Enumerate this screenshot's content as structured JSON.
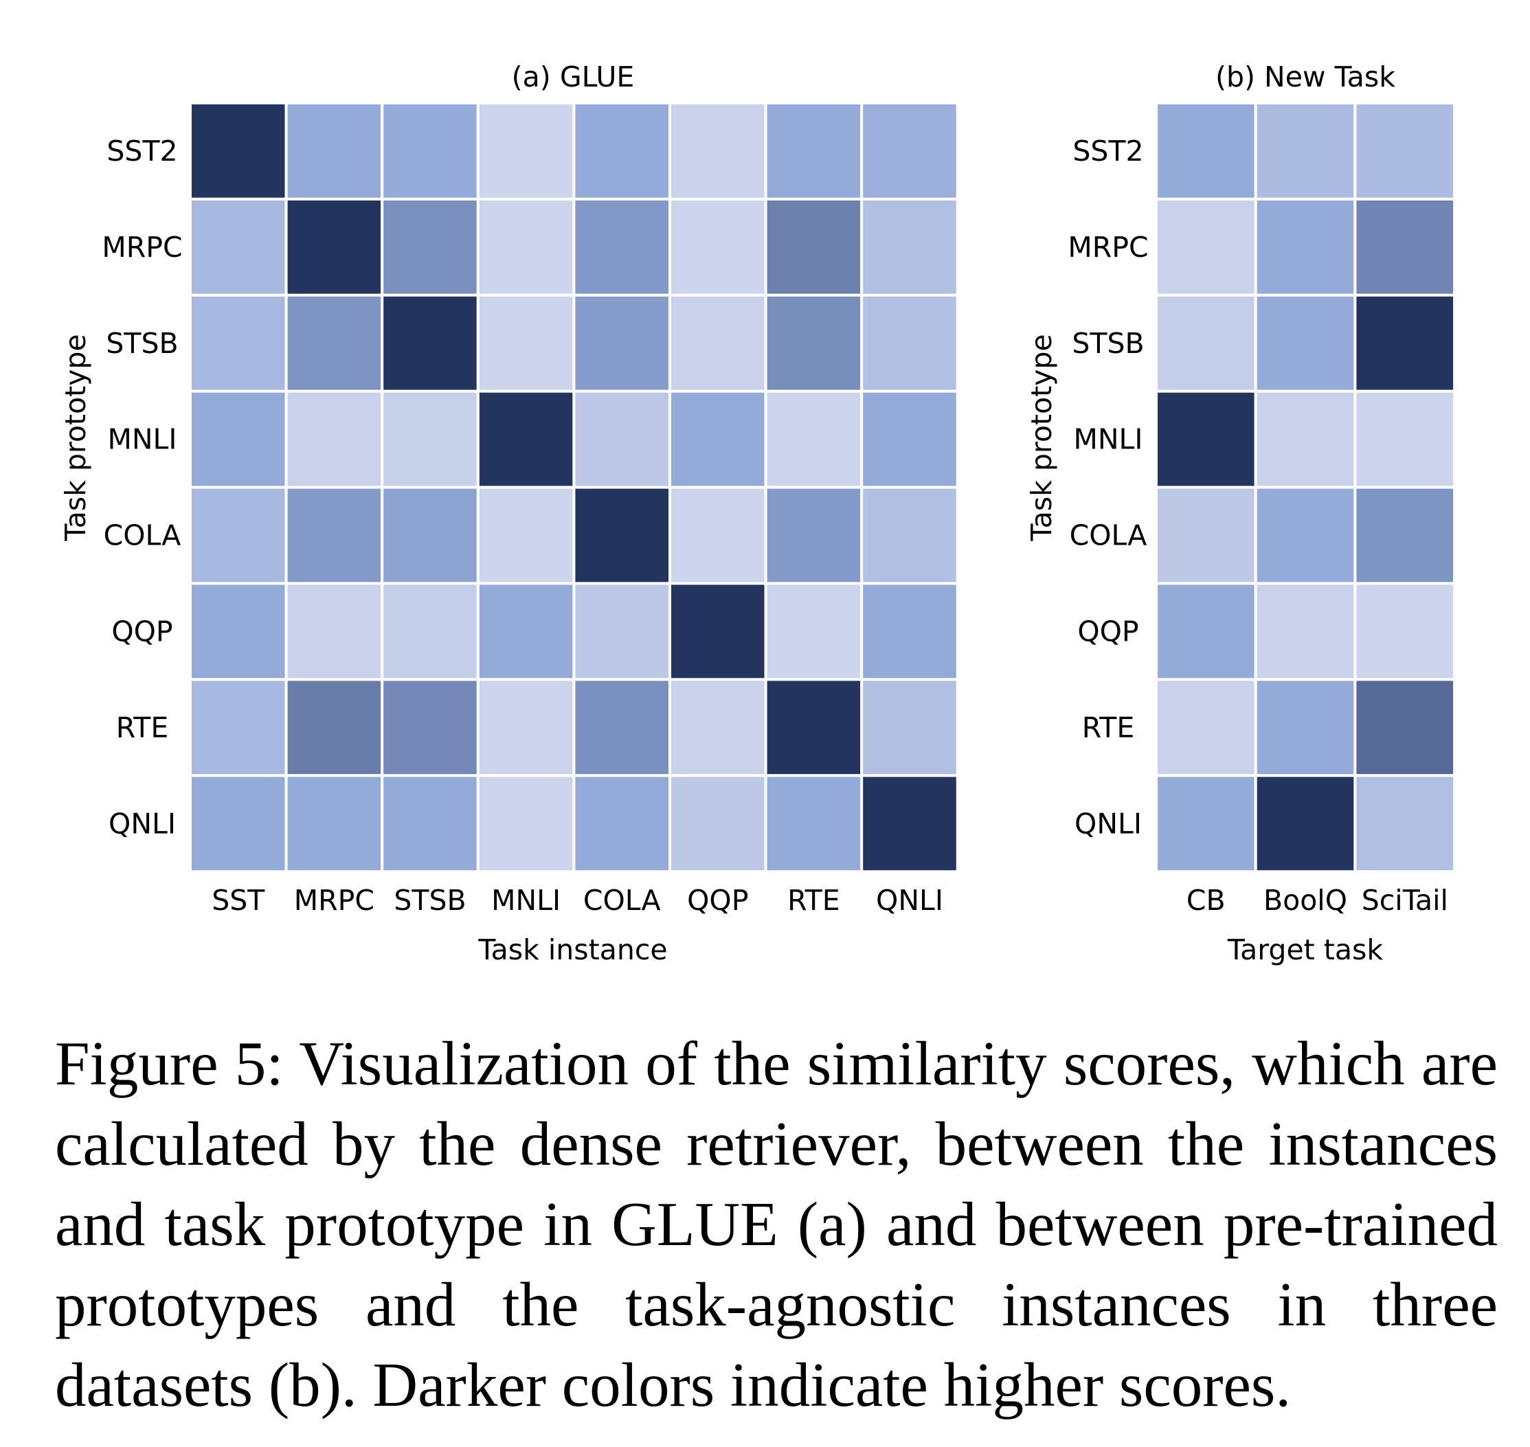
{
  "chart_data": [
    {
      "type": "heatmap",
      "title": "(a) GLUE",
      "xlabel": "Task instance",
      "ylabel": "Task prototype",
      "x_categories": [
        "SST",
        "MRPC",
        "STSB",
        "MNLI",
        "COLA",
        "QQP",
        "RTE",
        "QNLI"
      ],
      "y_categories": [
        "SST2",
        "MRPC",
        "STSB",
        "MNLI",
        "COLA",
        "QQP",
        "RTE",
        "QNLI"
      ],
      "value_range": [
        0,
        1
      ],
      "values": [
        [
          1.0,
          0.44,
          0.43,
          0.1,
          0.44,
          0.12,
          0.44,
          0.4
        ],
        [
          0.32,
          1.0,
          0.57,
          0.1,
          0.53,
          0.1,
          0.64,
          0.27
        ],
        [
          0.32,
          0.55,
          1.0,
          0.1,
          0.51,
          0.12,
          0.58,
          0.27
        ],
        [
          0.44,
          0.12,
          0.14,
          1.0,
          0.2,
          0.44,
          0.1,
          0.44
        ],
        [
          0.32,
          0.52,
          0.48,
          0.1,
          1.0,
          0.1,
          0.52,
          0.27
        ],
        [
          0.44,
          0.12,
          0.15,
          0.44,
          0.2,
          1.0,
          0.1,
          0.44
        ],
        [
          0.32,
          0.66,
          0.6,
          0.1,
          0.57,
          0.12,
          1.0,
          0.27
        ],
        [
          0.44,
          0.44,
          0.44,
          0.1,
          0.44,
          0.2,
          0.44,
          1.0
        ]
      ]
    },
    {
      "type": "heatmap",
      "title": "(b) New Task",
      "xlabel": "Target task",
      "ylabel": "Task prototype",
      "x_categories": [
        "CB",
        "BoolQ",
        "SciTail"
      ],
      "y_categories": [
        "SST2",
        "MRPC",
        "STSB",
        "MNLI",
        "COLA",
        "QQP",
        "RTE",
        "QNLI"
      ],
      "value_range": [
        0,
        1
      ],
      "values": [
        [
          0.44,
          0.3,
          0.3
        ],
        [
          0.12,
          0.44,
          0.62
        ],
        [
          0.15,
          0.44,
          1.0
        ],
        [
          1.0,
          0.12,
          0.1
        ],
        [
          0.2,
          0.44,
          0.55
        ],
        [
          0.44,
          0.12,
          0.1
        ],
        [
          0.12,
          0.44,
          0.75
        ],
        [
          0.44,
          1.0,
          0.27
        ]
      ]
    }
  ],
  "caption": "Figure 5: Visualization of the similarity scores, which are calculated by the dense retriever, between the instances and task prototype in GLUE (a) and between pre-trained prototypes and the task-agnostic instances in three datasets (b). Darker colors indicate higher scores.",
  "colors": {
    "low": "#dde1f1",
    "mid": "#92a9d8",
    "high": "#23355f",
    "cell_border": "#ffffff"
  }
}
